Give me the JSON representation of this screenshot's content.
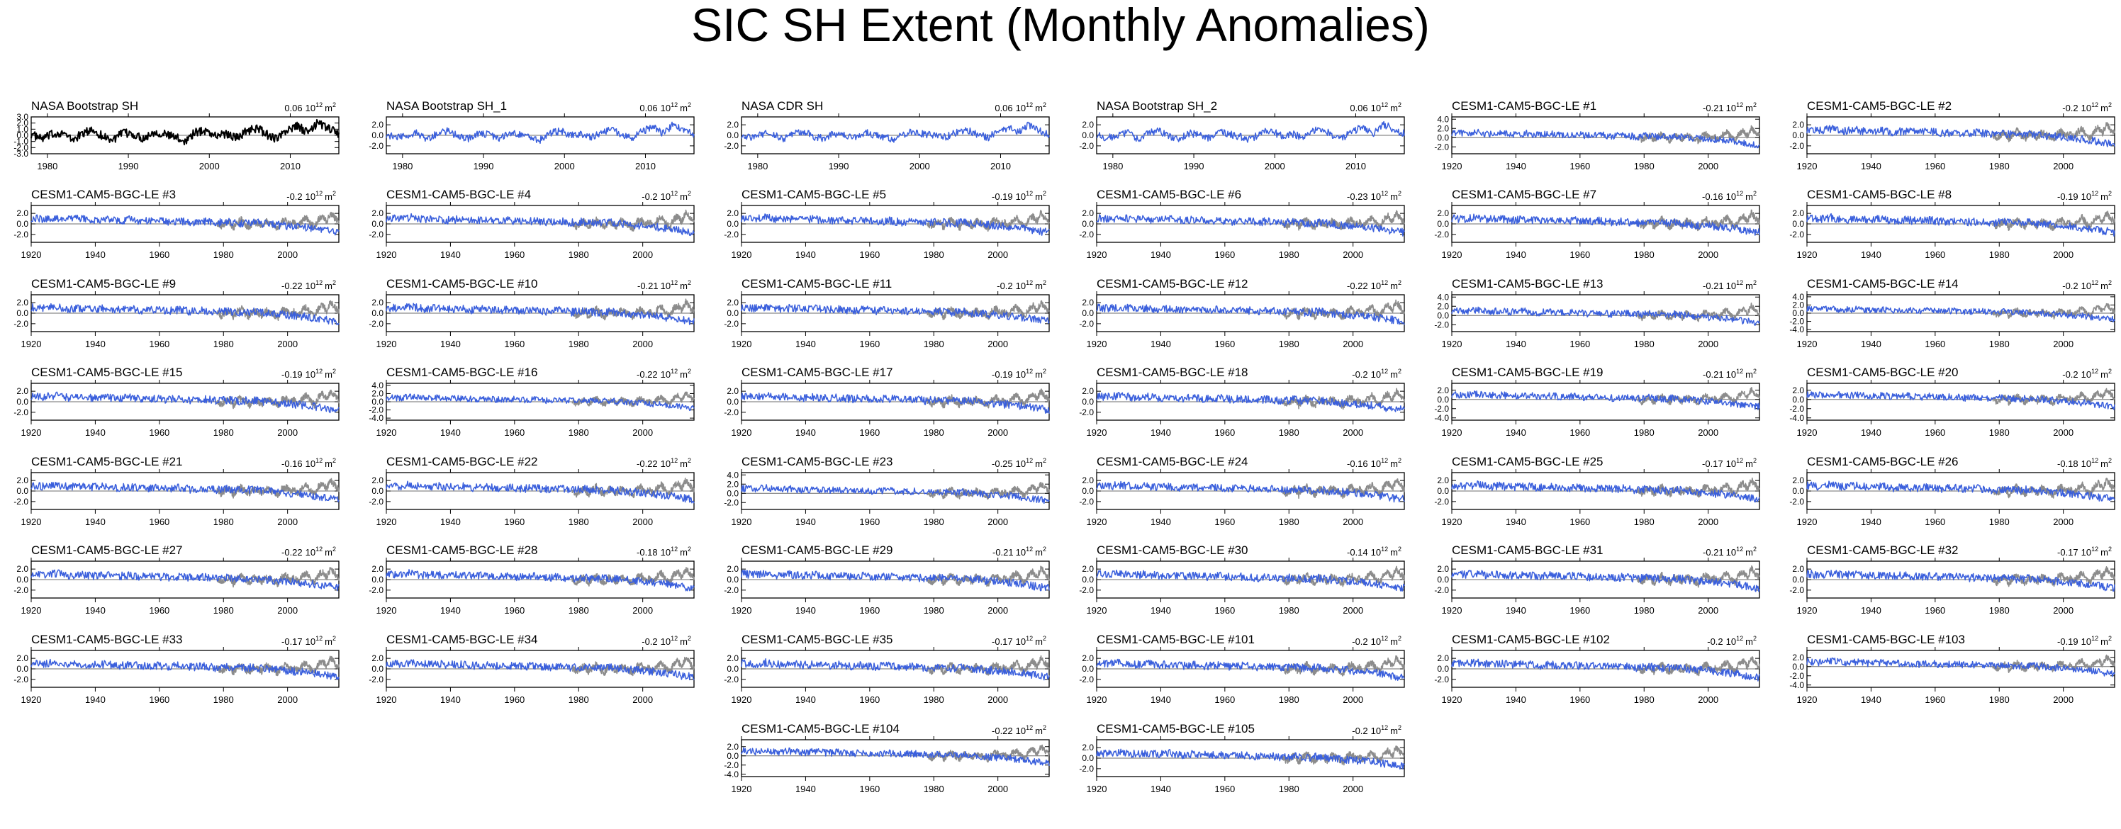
{
  "title": "SIC SH Extent (Monthly Anomalies)",
  "colors": {
    "observation": "#000000",
    "model": "#3a5fdc",
    "observation_overlay": "#8c8c8c",
    "axis": "#000000",
    "zero_line": "#6e6e6e"
  },
  "chart_data": [
    {
      "type": "line",
      "title": "NASA Bootstrap SH",
      "trend": "0.06",
      "unit": "m",
      "xlim": [
        1978,
        2016
      ],
      "xticks": [
        "1980",
        "1990",
        "2000",
        "2010"
      ],
      "yticks": [
        "3.0",
        "2.0",
        "1.0",
        "0.0",
        "-1.0",
        "-2.0",
        "-3.0"
      ],
      "ylim": [
        -3,
        3
      ],
      "series": [
        {
          "values": [
            0.2,
            -0.6,
            0.1,
            0.5,
            -0.8,
            0.3,
            0.9,
            -0.2,
            -0.7,
            0.4,
            0.1,
            -0.5,
            0.6,
            0.2,
            -0.3,
            -0.9,
            0.5,
            0.8,
            -0.1,
            0.3,
            -0.4,
            0.7,
            1.2,
            0.1,
            -0.6,
            0.9,
            1.5,
            0.4,
            2.1,
            1.1,
            0.3
          ]
        }
      ]
    },
    {
      "type": "line",
      "title": "NASA Bootstrap SH_1",
      "trend": "0.06",
      "unit": "m",
      "xlim": [
        1978,
        2016
      ],
      "xticks": [
        "1980",
        "1990",
        "2000",
        "2010"
      ],
      "yticks": [
        "2.0",
        "0.0",
        "-2.0"
      ],
      "ylim": [
        -3.5,
        3.5
      ],
      "series": [
        {
          "values": [
            0.2,
            -0.6,
            0.1,
            0.5,
            -0.8,
            0.3,
            0.9,
            -0.2,
            -0.7,
            0.4,
            0.1,
            -0.5,
            0.6,
            0.2,
            -0.3,
            -0.9,
            0.5,
            0.8,
            -0.1,
            0.3,
            -0.4,
            0.7,
            1.2,
            0.1,
            -0.6,
            0.9,
            1.5,
            0.4,
            2.1,
            1.1,
            0.3
          ]
        }
      ]
    },
    {
      "type": "line",
      "title": "NASA CDR SH",
      "trend": "0.06",
      "unit": "m",
      "xlim": [
        1978,
        2016
      ],
      "xticks": [
        "1980",
        "1990",
        "2000",
        "2010"
      ],
      "yticks": [
        "2.0",
        "0.0",
        "-2.0"
      ],
      "ylim": [
        -3.5,
        3.5
      ],
      "series": [
        {
          "values": [
            0.1,
            -0.5,
            0.2,
            0.4,
            -0.7,
            0.2,
            0.8,
            -0.3,
            -0.6,
            0.3,
            0.2,
            -0.4,
            0.5,
            0.1,
            -0.4,
            -0.8,
            0.4,
            0.7,
            0.0,
            0.2,
            -0.3,
            0.6,
            1.1,
            0.2,
            -0.5,
            0.8,
            1.4,
            0.5,
            2.0,
            1.0,
            0.2
          ]
        }
      ]
    },
    {
      "type": "line",
      "title": "NASA Bootstrap SH_2",
      "trend": "0.06",
      "unit": "m",
      "xlim": [
        1978,
        2016
      ],
      "xticks": [
        "1980",
        "1990",
        "2000",
        "2010"
      ],
      "yticks": [
        "2.0",
        "0.0",
        "-2.0"
      ],
      "ylim": [
        -3.5,
        3.5
      ],
      "series": [
        {
          "values": [
            0.2,
            -0.6,
            0.1,
            0.5,
            -0.8,
            0.3,
            0.9,
            -0.2,
            -0.7,
            0.4,
            0.1,
            -0.5,
            0.6,
            0.2,
            -0.3,
            -0.9,
            0.5,
            0.8,
            -0.1,
            0.3,
            -0.4,
            0.7,
            1.2,
            0.1,
            -0.6,
            0.9,
            1.5,
            0.4,
            2.1,
            1.1,
            0.3
          ]
        }
      ]
    },
    {
      "type": "line",
      "title": "CESM1-CAM5-BGC-LE #1",
      "trend": "-0.21",
      "unit": "m",
      "yticks": [
        "4.0",
        "2.0",
        "0.0",
        "-2.0"
      ],
      "ylim": [
        -3.5,
        4.5
      ]
    },
    {
      "type": "line",
      "title": "CESM1-CAM5-BGC-LE #2",
      "trend": "-0.2",
      "unit": "m",
      "yticks": [
        "2.0",
        "0.0",
        "-2.0"
      ]
    },
    {
      "type": "line",
      "title": "CESM1-CAM5-BGC-LE #3",
      "trend": "-0.2",
      "unit": "m",
      "yticks": [
        "2.0",
        "0.0",
        "-2.0"
      ]
    },
    {
      "type": "line",
      "title": "CESM1-CAM5-BGC-LE #4",
      "trend": "-0.2",
      "unit": "m",
      "yticks": [
        "2.0",
        "0.0",
        "-2.0"
      ]
    },
    {
      "type": "line",
      "title": "CESM1-CAM5-BGC-LE #5",
      "trend": "-0.19",
      "unit": "m",
      "yticks": [
        "2.0",
        "0.0",
        "-2.0"
      ]
    },
    {
      "type": "line",
      "title": "CESM1-CAM5-BGC-LE #6",
      "trend": "-0.23",
      "unit": "m",
      "yticks": [
        "2.0",
        "0.0",
        "-2.0"
      ]
    },
    {
      "type": "line",
      "title": "CESM1-CAM5-BGC-LE #7",
      "trend": "-0.16",
      "unit": "m",
      "yticks": [
        "2.0",
        "0.0",
        "-2.0"
      ]
    },
    {
      "type": "line",
      "title": "CESM1-CAM5-BGC-LE #8",
      "trend": "-0.19",
      "unit": "m",
      "yticks": [
        "2.0",
        "0.0",
        "-2.0"
      ]
    },
    {
      "type": "line",
      "title": "CESM1-CAM5-BGC-LE #9",
      "trend": "-0.22",
      "unit": "m",
      "yticks": [
        "2.0",
        "0.0",
        "-2.0"
      ]
    },
    {
      "type": "line",
      "title": "CESM1-CAM5-BGC-LE #10",
      "trend": "-0.21",
      "unit": "m",
      "yticks": [
        "2.0",
        "0.0",
        "-2.0"
      ]
    },
    {
      "type": "line",
      "title": "CESM1-CAM5-BGC-LE #11",
      "trend": "-0.2",
      "unit": "m",
      "yticks": [
        "2.0",
        "0.0",
        "-2.0"
      ]
    },
    {
      "type": "line",
      "title": "CESM1-CAM5-BGC-LE #12",
      "trend": "-0.22",
      "unit": "m",
      "yticks": [
        "2.0",
        "0.0",
        "-2.0"
      ]
    },
    {
      "type": "line",
      "title": "CESM1-CAM5-BGC-LE #13",
      "trend": "-0.21",
      "unit": "m",
      "yticks": [
        "4.0",
        "2.0",
        "0.0",
        "-2.0"
      ],
      "ylim": [
        -3.5,
        4.5
      ]
    },
    {
      "type": "line",
      "title": "CESM1-CAM5-BGC-LE #14",
      "trend": "-0.2",
      "unit": "m",
      "yticks": [
        "4.0",
        "2.0",
        "0.0",
        "-2.0",
        "-4.0"
      ],
      "ylim": [
        -4.5,
        4.5
      ]
    },
    {
      "type": "line",
      "title": "CESM1-CAM5-BGC-LE #15",
      "trend": "-0.19",
      "unit": "m",
      "yticks": [
        "2.0",
        "0.0",
        "-2.0"
      ]
    },
    {
      "type": "line",
      "title": "CESM1-CAM5-BGC-LE #16",
      "trend": "-0.22",
      "unit": "m",
      "yticks": [
        "4.0",
        "2.0",
        "0.0",
        "-2.0",
        "-4.0"
      ],
      "ylim": [
        -4.5,
        4.5
      ]
    },
    {
      "type": "line",
      "title": "CESM1-CAM5-BGC-LE #17",
      "trend": "-0.19",
      "unit": "m",
      "yticks": [
        "2.0",
        "0.0",
        "-2.0"
      ]
    },
    {
      "type": "line",
      "title": "CESM1-CAM5-BGC-LE #18",
      "trend": "-0.2",
      "unit": "m",
      "yticks": [
        "2.0",
        "0.0",
        "-2.0"
      ]
    },
    {
      "type": "line",
      "title": "CESM1-CAM5-BGC-LE #19",
      "trend": "-0.21",
      "unit": "m",
      "yticks": [
        "2.0",
        "0.0",
        "-2.0",
        "-4.0"
      ],
      "ylim": [
        -4.5,
        3.5
      ]
    },
    {
      "type": "line",
      "title": "CESM1-CAM5-BGC-LE #20",
      "trend": "-0.2",
      "unit": "m",
      "yticks": [
        "2.0",
        "0.0",
        "-2.0",
        "-4.0"
      ],
      "ylim": [
        -4.5,
        3.5
      ]
    },
    {
      "type": "line",
      "title": "CESM1-CAM5-BGC-LE #21",
      "trend": "-0.16",
      "unit": "m",
      "yticks": [
        "2.0",
        "0.0",
        "-2.0"
      ]
    },
    {
      "type": "line",
      "title": "CESM1-CAM5-BGC-LE #22",
      "trend": "-0.22",
      "unit": "m",
      "yticks": [
        "2.0",
        "0.0",
        "-2.0"
      ]
    },
    {
      "type": "line",
      "title": "CESM1-CAM5-BGC-LE #23",
      "trend": "-0.25",
      "unit": "m",
      "yticks": [
        "4.0",
        "2.0",
        "0.0",
        "-2.0"
      ],
      "ylim": [
        -3.5,
        4.5
      ]
    },
    {
      "type": "line",
      "title": "CESM1-CAM5-BGC-LE #24",
      "trend": "-0.16",
      "unit": "m",
      "yticks": [
        "2.0",
        "0.0",
        "-2.0"
      ]
    },
    {
      "type": "line",
      "title": "CESM1-CAM5-BGC-LE #25",
      "trend": "-0.17",
      "unit": "m",
      "yticks": [
        "2.0",
        "0.0",
        "-2.0"
      ]
    },
    {
      "type": "line",
      "title": "CESM1-CAM5-BGC-LE #26",
      "trend": "-0.18",
      "unit": "m",
      "yticks": [
        "2.0",
        "0.0",
        "-2.0"
      ]
    },
    {
      "type": "line",
      "title": "CESM1-CAM5-BGC-LE #27",
      "trend": "-0.22",
      "unit": "m",
      "yticks": [
        "2.0",
        "0.0",
        "-2.0"
      ]
    },
    {
      "type": "line",
      "title": "CESM1-CAM5-BGC-LE #28",
      "trend": "-0.18",
      "unit": "m",
      "yticks": [
        "2.0",
        "0.0",
        "-2.0"
      ]
    },
    {
      "type": "line",
      "title": "CESM1-CAM5-BGC-LE #29",
      "trend": "-0.21",
      "unit": "m",
      "yticks": [
        "2.0",
        "0.0",
        "-2.0"
      ]
    },
    {
      "type": "line",
      "title": "CESM1-CAM5-BGC-LE #30",
      "trend": "-0.14",
      "unit": "m",
      "yticks": [
        "2.0",
        "0.0",
        "-2.0"
      ]
    },
    {
      "type": "line",
      "title": "CESM1-CAM5-BGC-LE #31",
      "trend": "-0.21",
      "unit": "m",
      "yticks": [
        "2.0",
        "0.0",
        "-2.0"
      ]
    },
    {
      "type": "line",
      "title": "CESM1-CAM5-BGC-LE #32",
      "trend": "-0.17",
      "unit": "m",
      "yticks": [
        "2.0",
        "0.0",
        "-2.0"
      ]
    },
    {
      "type": "line",
      "title": "CESM1-CAM5-BGC-LE #33",
      "trend": "-0.17",
      "unit": "m",
      "yticks": [
        "2.0",
        "0.0",
        "-2.0"
      ]
    },
    {
      "type": "line",
      "title": "CESM1-CAM5-BGC-LE #34",
      "trend": "-0.2",
      "unit": "m",
      "yticks": [
        "2.0",
        "0.0",
        "-2.0"
      ]
    },
    {
      "type": "line",
      "title": "CESM1-CAM5-BGC-LE #35",
      "trend": "-0.17",
      "unit": "m",
      "yticks": [
        "2.0",
        "0.0",
        "-2.0"
      ]
    },
    {
      "type": "line",
      "title": "CESM1-CAM5-BGC-LE #101",
      "trend": "-0.2",
      "unit": "m",
      "yticks": [
        "2.0",
        "0.0",
        "-2.0"
      ]
    },
    {
      "type": "line",
      "title": "CESM1-CAM5-BGC-LE #102",
      "trend": "-0.2",
      "unit": "m",
      "yticks": [
        "2.0",
        "0.0",
        "-2.0"
      ]
    },
    {
      "type": "line",
      "title": "CESM1-CAM5-BGC-LE #103",
      "trend": "-0.19",
      "unit": "m",
      "yticks": [
        "2.0",
        "0.0",
        "-2.0",
        "-4.0"
      ],
      "ylim": [
        -4.5,
        3.5
      ]
    },
    {
      "type": "line",
      "title": "CESM1-CAM5-BGC-LE #104",
      "trend": "-0.22",
      "unit": "m",
      "yticks": [
        "2.0",
        "0.0",
        "-2.0",
        "-4.0"
      ],
      "ylim": [
        -4.5,
        3.5
      ]
    },
    {
      "type": "line",
      "title": "CESM1-CAM5-BGC-LE #105",
      "trend": "-0.2",
      "unit": "m",
      "yticks": [
        "2.0",
        "0.0",
        "-2.0"
      ]
    }
  ],
  "model_defaults": {
    "xlim": [
      1920,
      2016
    ],
    "xticks": [
      "1920",
      "1940",
      "1960",
      "1980",
      "2000"
    ],
    "ylim": [
      -3.5,
      3.5
    ],
    "values": [
      1.1,
      0.9,
      1.2,
      0.8,
      1.0,
      0.7,
      0.9,
      0.6,
      0.8,
      0.5,
      0.7,
      0.4,
      0.6,
      0.3,
      0.5,
      0.2,
      0.4,
      0.1,
      0.3,
      0.0,
      -0.2,
      -0.4,
      -0.6,
      -0.9,
      -1.3,
      -1.6
    ]
  }
}
